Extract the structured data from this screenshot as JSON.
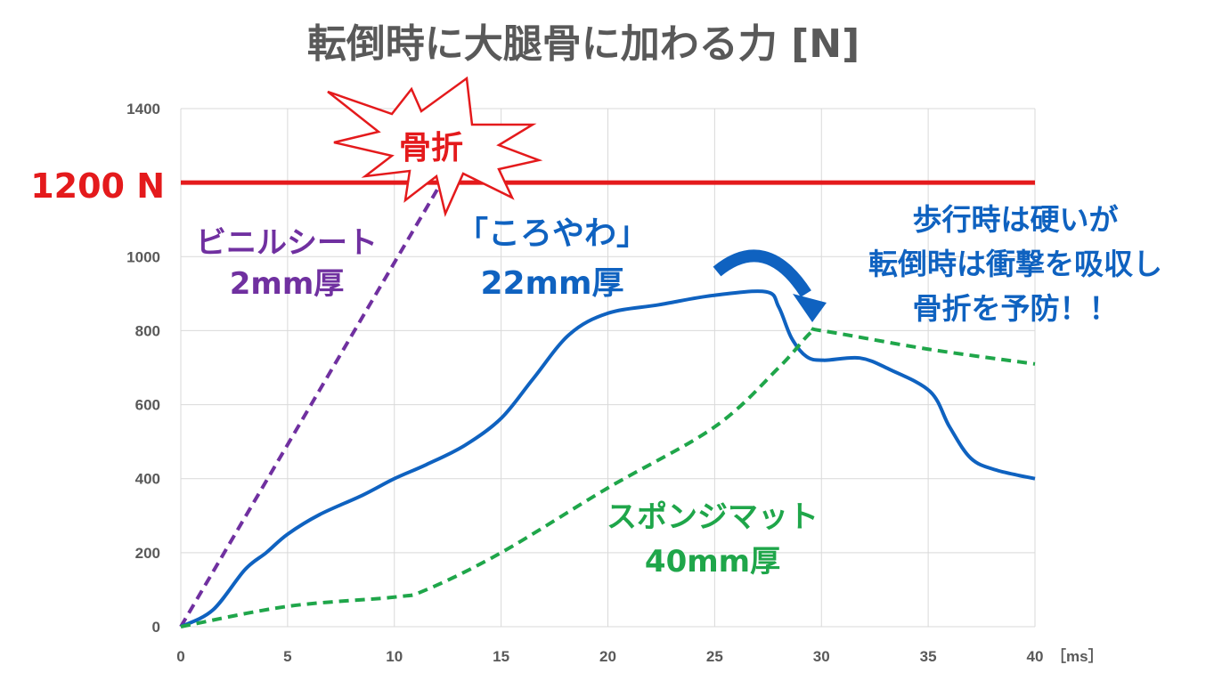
{
  "chart_data": {
    "type": "line",
    "title": "転倒時に大腿骨に加わる力 [N]",
    "xlabel": "［ms］",
    "ylabel": "",
    "xlim": [
      0,
      40
    ],
    "ylim": [
      0,
      1400
    ],
    "xticks": [
      "0",
      "5",
      "10",
      "15",
      "20",
      "25",
      "30",
      "35",
      "40"
    ],
    "yticks": [
      "0",
      "200",
      "400",
      "600",
      "800",
      "1000",
      "1400"
    ],
    "grid": true,
    "threshold": {
      "value": 1200,
      "label": "1200 N",
      "color": "#e41a1c"
    },
    "burst_label": "骨折",
    "series": [
      {
        "name": "ビニルシート 2mm厚",
        "label_lines": [
          "ビニルシート",
          "2mm厚"
        ],
        "color": "#7030a0",
        "style": "dashed",
        "x": [
          0,
          12.2
        ],
        "y": [
          0,
          1200
        ]
      },
      {
        "name": "「ころやわ」 22mm厚",
        "label_lines": [
          "「ころやわ」",
          "22mm厚"
        ],
        "color": "#0f62c0",
        "style": "solid",
        "x": [
          0,
          1.5,
          3,
          4,
          5,
          6.5,
          8.5,
          10,
          11.5,
          13.3,
          15,
          16.5,
          18.2,
          20,
          22.4,
          24.9,
          27.4,
          28,
          28.6,
          29.3,
          30.1,
          31.8,
          33.2,
          35.1,
          36,
          37,
          38.2,
          40
        ],
        "y": [
          0,
          45,
          154,
          200,
          250,
          303,
          355,
          400,
          438,
          490,
          563,
          670,
          790,
          847,
          870,
          895,
          905,
          864,
          780,
          730,
          720,
          726,
          695,
          635,
          540,
          455,
          423,
          400
        ]
      },
      {
        "name": "スポンジマット 40mm厚",
        "label_lines": [
          "スポンジマット",
          "40mm厚"
        ],
        "color": "#1fa64a",
        "style": "dashed",
        "x": [
          0,
          5,
          10,
          11.5,
          15,
          20,
          25,
          28,
          29.5,
          30,
          35,
          40
        ],
        "y": [
          0,
          55,
          80,
          100,
          200,
          375,
          540,
          700,
          795,
          800,
          750,
          710
        ]
      }
    ],
    "annotation": {
      "lines": [
        "歩行時は硬いが",
        "転倒時は衝撃を吸収し",
        "骨折を予防！！"
      ],
      "color": "#0f62c0"
    }
  }
}
